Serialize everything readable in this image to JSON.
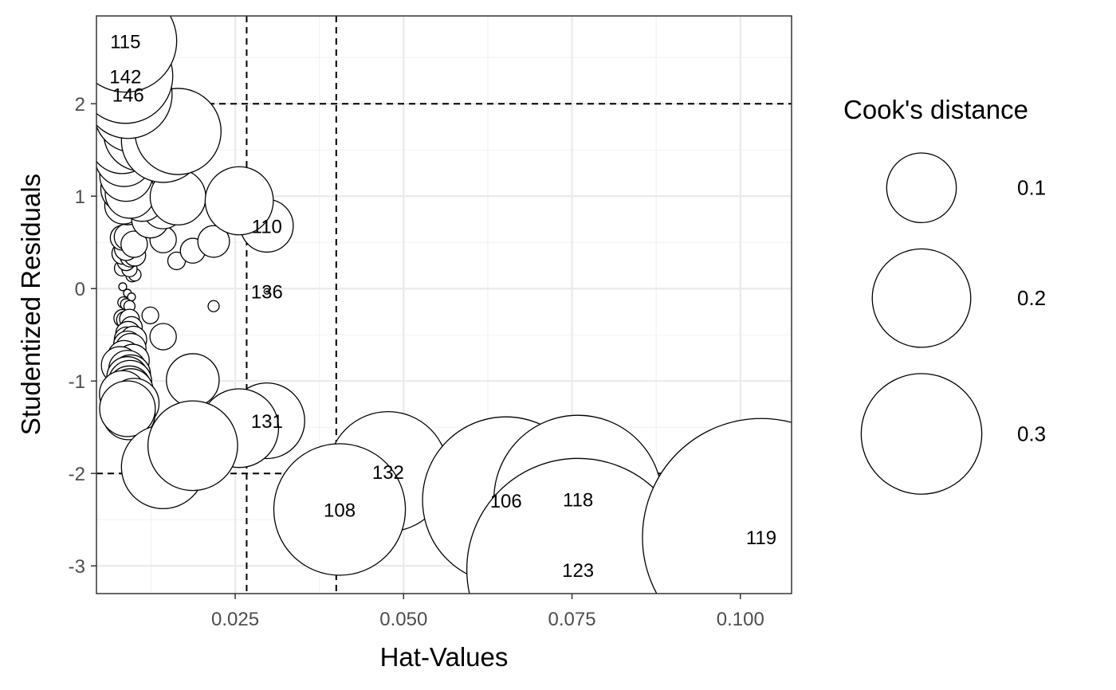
{
  "chart_data": {
    "type": "scatter",
    "xlabel": "Hat-Values",
    "ylabel": "Studentized Residuals",
    "xlim": [
      0.0044,
      0.1076
    ],
    "ylim": [
      -3.3,
      2.95
    ],
    "x_ticks": [
      {
        "value": 0.025,
        "label": "0.025"
      },
      {
        "value": 0.05,
        "label": "0.050"
      },
      {
        "value": 0.075,
        "label": "0.075"
      },
      {
        "value": 0.1,
        "label": "0.100"
      }
    ],
    "y_ticks": [
      {
        "value": -3,
        "label": "-3"
      },
      {
        "value": -2,
        "label": "-2"
      },
      {
        "value": -1,
        "label": "-1"
      },
      {
        "value": 0,
        "label": "0"
      },
      {
        "value": 1,
        "label": "1"
      },
      {
        "value": 2,
        "label": "2"
      }
    ],
    "grid": true,
    "reference_lines": {
      "horizontal": [
        -2,
        2
      ],
      "vertical": [
        0.0267,
        0.04
      ]
    },
    "size_variable": "Cook's distance",
    "legend": {
      "title": "Cook's distance",
      "position": "right",
      "entries": [
        {
          "value": 0.1,
          "label": "0.1"
        },
        {
          "value": 0.2,
          "label": "0.2"
        },
        {
          "value": 0.3,
          "label": "0.3"
        }
      ]
    },
    "points": [
      {
        "x": 0.0087,
        "y": 2.68,
        "cook": 0.068,
        "label": "115"
      },
      {
        "x": 0.0087,
        "y": 2.3,
        "cook": 0.058,
        "label": "142"
      },
      {
        "x": 0.0091,
        "y": 2.1,
        "cook": 0.05,
        "label": "146"
      },
      {
        "x": 0.0099,
        "y": 1.9,
        "cook": 0.04,
        "label": ""
      },
      {
        "x": 0.0143,
        "y": 1.6,
        "cook": 0.045,
        "label": ""
      },
      {
        "x": 0.0165,
        "y": 1.7,
        "cook": 0.048,
        "label": ""
      },
      {
        "x": 0.0111,
        "y": 1.68,
        "cook": 0.037,
        "label": ""
      },
      {
        "x": 0.0082,
        "y": 1.6,
        "cook": 0.028,
        "label": ""
      },
      {
        "x": 0.0085,
        "y": 1.42,
        "cook": 0.022,
        "label": ""
      },
      {
        "x": 0.0088,
        "y": 1.23,
        "cook": 0.018,
        "label": ""
      },
      {
        "x": 0.0085,
        "y": 1.08,
        "cook": 0.014,
        "label": ""
      },
      {
        "x": 0.0094,
        "y": 1.03,
        "cook": 0.016,
        "label": ""
      },
      {
        "x": 0.0112,
        "y": 0.97,
        "cook": 0.013,
        "label": ""
      },
      {
        "x": 0.0165,
        "y": 0.99,
        "cook": 0.02,
        "label": ""
      },
      {
        "x": 0.0256,
        "y": 0.95,
        "cook": 0.03,
        "label": ""
      },
      {
        "x": 0.0084,
        "y": 0.9,
        "cook": 0.009,
        "label": ""
      },
      {
        "x": 0.009,
        "y": 0.88,
        "cook": 0.008,
        "label": ""
      },
      {
        "x": 0.0143,
        "y": 0.87,
        "cook": 0.011,
        "label": ""
      },
      {
        "x": 0.0124,
        "y": 0.75,
        "cook": 0.009,
        "label": ""
      },
      {
        "x": 0.0297,
        "y": 0.68,
        "cook": 0.018,
        "label": "110"
      },
      {
        "x": 0.0083,
        "y": 0.55,
        "cook": 0.004,
        "label": ""
      },
      {
        "x": 0.009,
        "y": 0.56,
        "cook": 0.0045,
        "label": ""
      },
      {
        "x": 0.01,
        "y": 0.48,
        "cook": 0.0045,
        "label": ""
      },
      {
        "x": 0.0143,
        "y": 0.53,
        "cook": 0.0045,
        "label": ""
      },
      {
        "x": 0.0218,
        "y": 0.51,
        "cook": 0.0065,
        "label": ""
      },
      {
        "x": 0.0088,
        "y": 0.43,
        "cook": 0.0035,
        "label": ""
      },
      {
        "x": 0.0187,
        "y": 0.41,
        "cook": 0.004,
        "label": ""
      },
      {
        "x": 0.0083,
        "y": 0.38,
        "cook": 0.003,
        "label": ""
      },
      {
        "x": 0.0095,
        "y": 0.35,
        "cook": 0.003,
        "label": ""
      },
      {
        "x": 0.0101,
        "y": 0.36,
        "cook": 0.003,
        "label": ""
      },
      {
        "x": 0.0088,
        "y": 0.29,
        "cook": 0.002,
        "label": ""
      },
      {
        "x": 0.0163,
        "y": 0.3,
        "cook": 0.002,
        "label": ""
      },
      {
        "x": 0.0082,
        "y": 0.22,
        "cook": 0.0015,
        "label": ""
      },
      {
        "x": 0.0093,
        "y": 0.21,
        "cook": 0.0015,
        "label": ""
      },
      {
        "x": 0.0097,
        "y": 0.14,
        "cook": 0.001,
        "label": ""
      },
      {
        "x": 0.0101,
        "y": 0.15,
        "cook": 0.001,
        "label": ""
      },
      {
        "x": 0.0083,
        "y": 0.02,
        "cook": 0.0004,
        "label": ""
      },
      {
        "x": 0.0297,
        "y": -0.03,
        "cook": 0.0002,
        "label": "136"
      },
      {
        "x": 0.009,
        "y": -0.05,
        "cook": 0.0004,
        "label": ""
      },
      {
        "x": 0.0096,
        "y": -0.09,
        "cook": 0.0004,
        "label": ""
      },
      {
        "x": 0.0084,
        "y": -0.15,
        "cook": 0.0008,
        "label": ""
      },
      {
        "x": 0.0088,
        "y": -0.17,
        "cook": 0.0008,
        "label": ""
      },
      {
        "x": 0.0093,
        "y": -0.19,
        "cook": 0.0008,
        "label": ""
      },
      {
        "x": 0.0218,
        "y": -0.19,
        "cook": 0.0008,
        "label": ""
      },
      {
        "x": 0.0124,
        "y": -0.29,
        "cook": 0.0018,
        "label": ""
      },
      {
        "x": 0.0083,
        "y": -0.32,
        "cook": 0.002,
        "label": ""
      },
      {
        "x": 0.0087,
        "y": -0.34,
        "cook": 0.002,
        "label": ""
      },
      {
        "x": 0.0093,
        "y": -0.33,
        "cook": 0.0025,
        "label": ""
      },
      {
        "x": 0.0096,
        "y": -0.42,
        "cook": 0.003,
        "label": ""
      },
      {
        "x": 0.0143,
        "y": -0.52,
        "cook": 0.0045,
        "label": ""
      },
      {
        "x": 0.0091,
        "y": -0.49,
        "cook": 0.004,
        "label": ""
      },
      {
        "x": 0.0089,
        "y": -0.55,
        "cook": 0.004,
        "label": ""
      },
      {
        "x": 0.0099,
        "y": -0.55,
        "cook": 0.0045,
        "label": ""
      },
      {
        "x": 0.009,
        "y": -0.61,
        "cook": 0.005,
        "label": ""
      },
      {
        "x": 0.0095,
        "y": -0.65,
        "cook": 0.006,
        "label": ""
      },
      {
        "x": 0.0085,
        "y": -0.74,
        "cook": 0.007,
        "label": ""
      },
      {
        "x": 0.0098,
        "y": -0.78,
        "cook": 0.007,
        "label": ""
      },
      {
        "x": 0.0079,
        "y": -0.83,
        "cook": 0.009,
        "label": ""
      },
      {
        "x": 0.009,
        "y": -0.87,
        "cook": 0.009,
        "label": ""
      },
      {
        "x": 0.0095,
        "y": -0.93,
        "cook": 0.01,
        "label": ""
      },
      {
        "x": 0.009,
        "y": -0.96,
        "cook": 0.011,
        "label": ""
      },
      {
        "x": 0.0094,
        "y": -1.01,
        "cook": 0.012,
        "label": ""
      },
      {
        "x": 0.0093,
        "y": -1.07,
        "cook": 0.012,
        "label": ""
      },
      {
        "x": 0.0095,
        "y": -1.11,
        "cook": 0.013,
        "label": ""
      },
      {
        "x": 0.0083,
        "y": -1.14,
        "cook": 0.014,
        "label": ""
      },
      {
        "x": 0.01,
        "y": -1.24,
        "cook": 0.016,
        "label": ""
      },
      {
        "x": 0.0092,
        "y": -1.35,
        "cook": 0.018,
        "label": ""
      },
      {
        "x": 0.009,
        "y": -1.3,
        "cook": 0.02,
        "label": ""
      },
      {
        "x": 0.0187,
        "y": -0.99,
        "cook": 0.018,
        "label": ""
      },
      {
        "x": 0.0256,
        "y": -1.51,
        "cook": 0.04,
        "label": ""
      },
      {
        "x": 0.0297,
        "y": -1.43,
        "cook": 0.037,
        "label": "131"
      },
      {
        "x": 0.0187,
        "y": -1.7,
        "cook": 0.052,
        "label": ""
      },
      {
        "x": 0.0143,
        "y": -1.93,
        "cook": 0.045,
        "label": ""
      },
      {
        "x": 0.0405,
        "y": -2.39,
        "cook": 0.112,
        "label": "108"
      },
      {
        "x": 0.0477,
        "y": -1.98,
        "cook": 0.093,
        "label": "132"
      },
      {
        "x": 0.0652,
        "y": -2.29,
        "cook": 0.18,
        "label": "106"
      },
      {
        "x": 0.0759,
        "y": -2.28,
        "cook": 0.183,
        "label": "118"
      },
      {
        "x": 0.0759,
        "y": -3.04,
        "cook": 0.32,
        "label": "123"
      },
      {
        "x": 0.1031,
        "y": -2.69,
        "cook": 0.365,
        "label": "119"
      }
    ]
  }
}
